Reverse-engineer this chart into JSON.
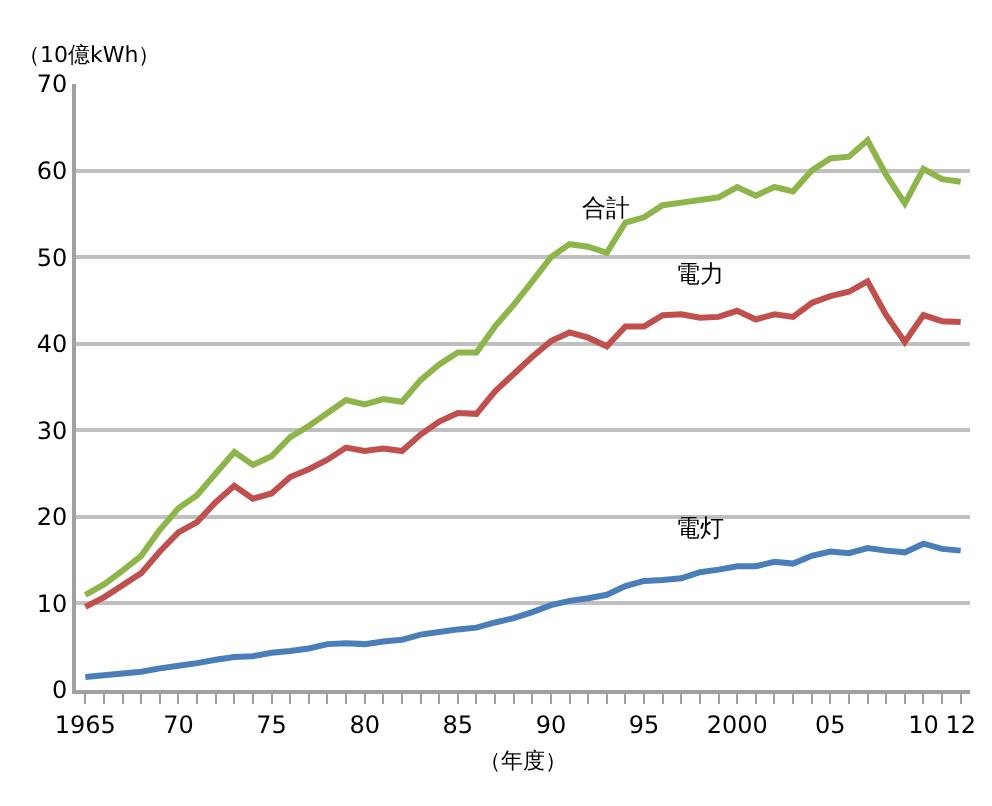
{
  "chart_data": {
    "type": "line",
    "ylabel": "（10億kWh）",
    "xlabel": "（年度）",
    "x": [
      1965,
      1966,
      1967,
      1968,
      1969,
      1970,
      1971,
      1972,
      1973,
      1974,
      1975,
      1976,
      1977,
      1978,
      1979,
      1980,
      1981,
      1982,
      1983,
      1984,
      1985,
      1986,
      1987,
      1988,
      1989,
      1990,
      1991,
      1992,
      1993,
      1994,
      1995,
      1996,
      1997,
      1998,
      1999,
      2000,
      2001,
      2002,
      2003,
      2004,
      2005,
      2006,
      2007,
      2008,
      2009,
      2010,
      2011,
      2012
    ],
    "series": [
      {
        "name": "合計",
        "color": "#8db54a",
        "values": [
          11,
          12.2,
          13.8,
          15.5,
          18.5,
          21,
          22.5,
          25,
          27.5,
          26,
          27,
          29.2,
          30.5,
          32,
          33.5,
          33,
          33.6,
          33.3,
          35.8,
          37.6,
          39,
          39,
          42,
          44.5,
          47.2,
          50,
          51.5,
          51.2,
          50.5,
          54,
          54.6,
          56,
          56.3,
          56.6,
          56.9,
          58.1,
          57.1,
          58.1,
          57.6,
          60,
          61.4,
          61.6,
          63.5,
          59.5,
          56.2,
          60.2,
          59,
          58.7
        ]
      },
      {
        "name": "電力",
        "color": "#c0504d",
        "values": [
          9.6,
          10.7,
          12.1,
          13.5,
          16,
          18.2,
          19.4,
          21.7,
          23.6,
          22.1,
          22.7,
          24.6,
          25.5,
          26.6,
          28,
          27.6,
          27.9,
          27.6,
          29.5,
          31,
          32,
          31.9,
          34.5,
          36.5,
          38.5,
          40.3,
          41.3,
          40.7,
          39.7,
          42,
          42,
          43.3,
          43.4,
          43,
          43.1,
          43.8,
          42.8,
          43.4,
          43.1,
          44.7,
          45.5,
          46,
          47.2,
          43.3,
          40.2,
          43.3,
          42.6,
          42.5
        ]
      },
      {
        "name": "電灯",
        "color": "#4a7ebb",
        "values": [
          1.5,
          1.7,
          1.9,
          2.1,
          2.5,
          2.8,
          3.1,
          3.5,
          3.8,
          3.9,
          4.3,
          4.5,
          4.8,
          5.3,
          5.4,
          5.3,
          5.6,
          5.8,
          6.4,
          6.7,
          7,
          7.2,
          7.8,
          8.3,
          9,
          9.8,
          10.3,
          10.6,
          11,
          12,
          12.6,
          12.7,
          12.9,
          13.6,
          13.9,
          14.3,
          14.3,
          14.8,
          14.6,
          15.5,
          16,
          15.8,
          16.4,
          16.1,
          15.9,
          16.9,
          16.3,
          16.1
        ]
      }
    ],
    "xlim": [
      1964.5,
      2012.5
    ],
    "xticks": [
      {
        "value": 1965,
        "label": "1965"
      },
      {
        "value": 1966,
        "label": null
      },
      {
        "value": 1967,
        "label": null
      },
      {
        "value": 1968,
        "label": null
      },
      {
        "value": 1969,
        "label": null
      },
      {
        "value": 1970,
        "label": "70"
      },
      {
        "value": 1971,
        "label": null
      },
      {
        "value": 1972,
        "label": null
      },
      {
        "value": 1973,
        "label": null
      },
      {
        "value": 1974,
        "label": null
      },
      {
        "value": 1975,
        "label": "75"
      },
      {
        "value": 1976,
        "label": null
      },
      {
        "value": 1977,
        "label": null
      },
      {
        "value": 1978,
        "label": null
      },
      {
        "value": 1979,
        "label": null
      },
      {
        "value": 1980,
        "label": "80"
      },
      {
        "value": 1981,
        "label": null
      },
      {
        "value": 1982,
        "label": null
      },
      {
        "value": 1983,
        "label": null
      },
      {
        "value": 1984,
        "label": null
      },
      {
        "value": 1985,
        "label": "85"
      },
      {
        "value": 1986,
        "label": null
      },
      {
        "value": 1987,
        "label": null
      },
      {
        "value": 1988,
        "label": null
      },
      {
        "value": 1989,
        "label": null
      },
      {
        "value": 1990,
        "label": "90"
      },
      {
        "value": 1991,
        "label": null
      },
      {
        "value": 1992,
        "label": null
      },
      {
        "value": 1993,
        "label": null
      },
      {
        "value": 1994,
        "label": null
      },
      {
        "value": 1995,
        "label": "95"
      },
      {
        "value": 1996,
        "label": null
      },
      {
        "value": 1997,
        "label": null
      },
      {
        "value": 1998,
        "label": null
      },
      {
        "value": 1999,
        "label": null
      },
      {
        "value": 2000,
        "label": "2000"
      },
      {
        "value": 2001,
        "label": null
      },
      {
        "value": 2002,
        "label": null
      },
      {
        "value": 2003,
        "label": null
      },
      {
        "value": 2004,
        "label": null
      },
      {
        "value": 2005,
        "label": "05"
      },
      {
        "value": 2006,
        "label": null
      },
      {
        "value": 2007,
        "label": null
      },
      {
        "value": 2008,
        "label": null
      },
      {
        "value": 2009,
        "label": null
      },
      {
        "value": 2010,
        "label": "10"
      },
      {
        "value": 2011,
        "label": null
      },
      {
        "value": 2012,
        "label": "12"
      }
    ],
    "ylim": [
      0,
      70
    ],
    "yticks": [
      0,
      10,
      20,
      30,
      40,
      50,
      60,
      70
    ],
    "grid": "y",
    "legend": false,
    "marker": "none",
    "line_style": "solid"
  }
}
